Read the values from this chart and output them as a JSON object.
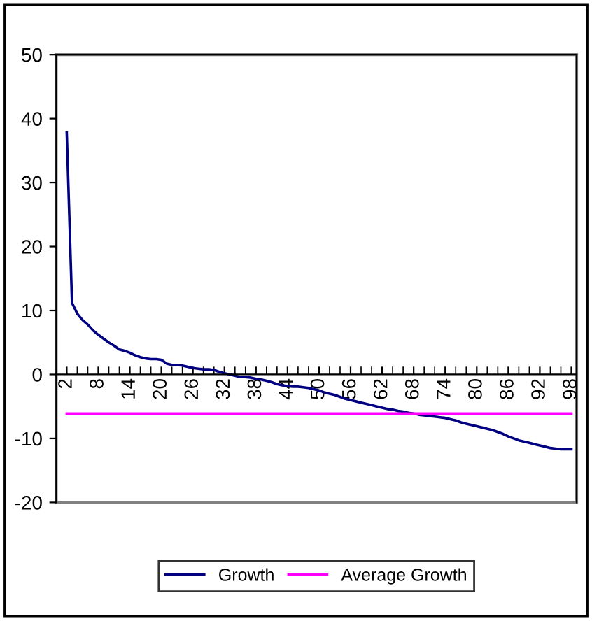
{
  "chart_data": {
    "type": "line",
    "categories": [
      "2",
      null,
      null,
      null,
      null,
      null,
      "8",
      null,
      null,
      null,
      null,
      null,
      "14",
      null,
      null,
      null,
      null,
      null,
      "20",
      null,
      null,
      null,
      null,
      null,
      "26",
      null,
      null,
      null,
      null,
      null,
      "32",
      null,
      null,
      null,
      null,
      null,
      "38",
      null,
      null,
      null,
      null,
      null,
      "44",
      null,
      null,
      null,
      null,
      null,
      "50",
      null,
      null,
      null,
      null,
      null,
      "56",
      null,
      null,
      null,
      null,
      null,
      "62",
      null,
      null,
      null,
      null,
      null,
      "68",
      null,
      null,
      null,
      null,
      null,
      "74",
      null,
      null,
      null,
      null,
      null,
      "80",
      null,
      null,
      null,
      null,
      null,
      "86",
      null,
      null,
      null,
      null,
      null,
      "92",
      null,
      null,
      null,
      null,
      null,
      "98"
    ],
    "series": [
      {
        "name": "Growth",
        "color": "#000080",
        "values": [
          37.8,
          11.2,
          9.5,
          8.5,
          7.8,
          6.9,
          6.2,
          5.6,
          5.0,
          4.5,
          3.9,
          3.7,
          3.4,
          3.0,
          2.7,
          2.5,
          2.4,
          2.4,
          2.3,
          1.7,
          1.5,
          1.5,
          1.4,
          1.2,
          1.0,
          0.9,
          0.8,
          0.8,
          0.7,
          0.4,
          0.2,
          0.0,
          -0.2,
          -0.4,
          -0.4,
          -0.5,
          -0.7,
          -0.8,
          -1.0,
          -1.2,
          -1.5,
          -1.7,
          -1.8,
          -1.9,
          -1.9,
          -2.0,
          -2.1,
          -2.3,
          -2.5,
          -2.8,
          -3.0,
          -3.2,
          -3.5,
          -3.8,
          -4.0,
          -4.2,
          -4.4,
          -4.6,
          -4.8,
          -5.0,
          -5.2,
          -5.4,
          -5.5,
          -5.7,
          -5.8,
          -6.0,
          -6.1,
          -6.3,
          -6.4,
          -6.5,
          -6.6,
          -6.7,
          -6.8,
          -7.0,
          -7.2,
          -7.5,
          -7.7,
          -7.9,
          -8.1,
          -8.3,
          -8.5,
          -8.7,
          -9.0,
          -9.3,
          -9.7,
          -10.0,
          -10.3,
          -10.5,
          -10.7,
          -10.9,
          -11.1,
          -11.3,
          -11.5,
          -11.6,
          -11.7,
          -11.7,
          -11.7
        ]
      },
      {
        "name": "Average Growth",
        "color": "#ff00ff",
        "values": [
          -6.1,
          -6.1,
          -6.1,
          -6.1,
          -6.1,
          -6.1,
          -6.1,
          -6.1,
          -6.1,
          -6.1,
          -6.1,
          -6.1,
          -6.1,
          -6.1,
          -6.1,
          -6.1,
          -6.1,
          -6.1,
          -6.1,
          -6.1,
          -6.1,
          -6.1,
          -6.1,
          -6.1,
          -6.1,
          -6.1,
          -6.1,
          -6.1,
          -6.1,
          -6.1,
          -6.1,
          -6.1,
          -6.1,
          -6.1,
          -6.1,
          -6.1,
          -6.1,
          -6.1,
          -6.1,
          -6.1,
          -6.1,
          -6.1,
          -6.1,
          -6.1,
          -6.1,
          -6.1,
          -6.1,
          -6.1,
          -6.1,
          -6.1,
          -6.1,
          -6.1,
          -6.1,
          -6.1,
          -6.1,
          -6.1,
          -6.1,
          -6.1,
          -6.1,
          -6.1,
          -6.1,
          -6.1,
          -6.1,
          -6.1,
          -6.1,
          -6.1,
          -6.1,
          -6.1,
          -6.1,
          -6.1,
          -6.1,
          -6.1,
          -6.1,
          -6.1,
          -6.1,
          -6.1,
          -6.1,
          -6.1,
          -6.1,
          -6.1,
          -6.1,
          -6.1,
          -6.1,
          -6.1,
          -6.1,
          -6.1,
          -6.1,
          -6.1,
          -6.1,
          -6.1,
          -6.1,
          -6.1,
          -6.1,
          -6.1,
          -6.1,
          -6.1,
          -6.1
        ]
      }
    ],
    "ylim": [
      -20,
      50
    ],
    "yticks": [
      -20,
      -10,
      0,
      10,
      20,
      30,
      40,
      50
    ],
    "grid": false,
    "legend": "bottom",
    "marker": "none",
    "line_style": "solid"
  }
}
